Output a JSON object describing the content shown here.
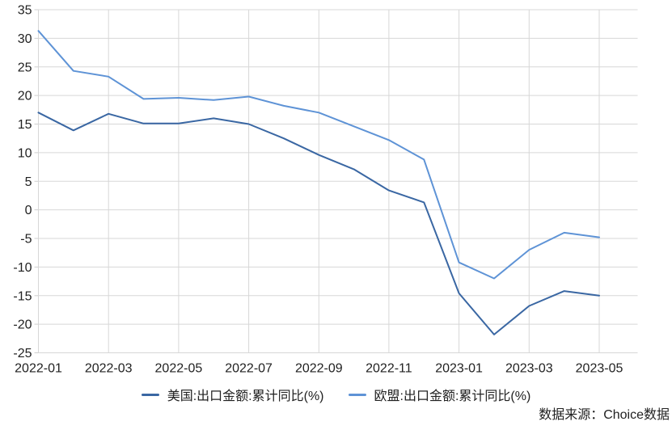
{
  "chart_data": {
    "type": "line",
    "title": "",
    "xlabel": "",
    "ylabel": "",
    "grid": true,
    "legend_position": "bottom",
    "ylim": [
      -25,
      35
    ],
    "y_tick_step": 5,
    "y_ticks": [
      35,
      30,
      25,
      20,
      15,
      10,
      5,
      0,
      -5,
      -10,
      -15,
      -20,
      -25
    ],
    "categories": [
      "2022-01",
      "2022-02",
      "2022-03",
      "2022-04",
      "2022-05",
      "2022-06",
      "2022-07",
      "2022-08",
      "2022-09",
      "2022-10",
      "2022-11",
      "2022-12",
      "2023-01",
      "2023-02",
      "2023-03",
      "2023-04",
      "2023-05"
    ],
    "x_tick_labels": [
      "2022-01",
      "2022-03",
      "2022-05",
      "2022-07",
      "2022-09",
      "2022-11",
      "2023-01",
      "2023-03",
      "2023-05"
    ],
    "series": [
      {
        "name": "美国:出口金额:累计同比(%)",
        "color": "#3a67a3",
        "values": [
          17.0,
          13.9,
          16.8,
          15.1,
          15.1,
          16.0,
          15.0,
          12.5,
          9.6,
          7.1,
          3.4,
          1.3,
          -14.6,
          -21.8,
          -16.8,
          -14.2,
          -15.0
        ]
      },
      {
        "name": "欧盟:出口金额:累计同比(%)",
        "color": "#5e93d6",
        "values": [
          31.3,
          24.3,
          23.3,
          19.4,
          19.6,
          19.2,
          19.8,
          18.2,
          17.0,
          14.6,
          12.2,
          8.8,
          -9.2,
          -12.0,
          -7.0,
          -4.0,
          -4.8
        ]
      }
    ]
  },
  "source_note": "数据来源：Choice数据",
  "colors": {
    "gridline": "#d7d7d7",
    "axis_text": "#212121",
    "background": "#ffffff"
  }
}
